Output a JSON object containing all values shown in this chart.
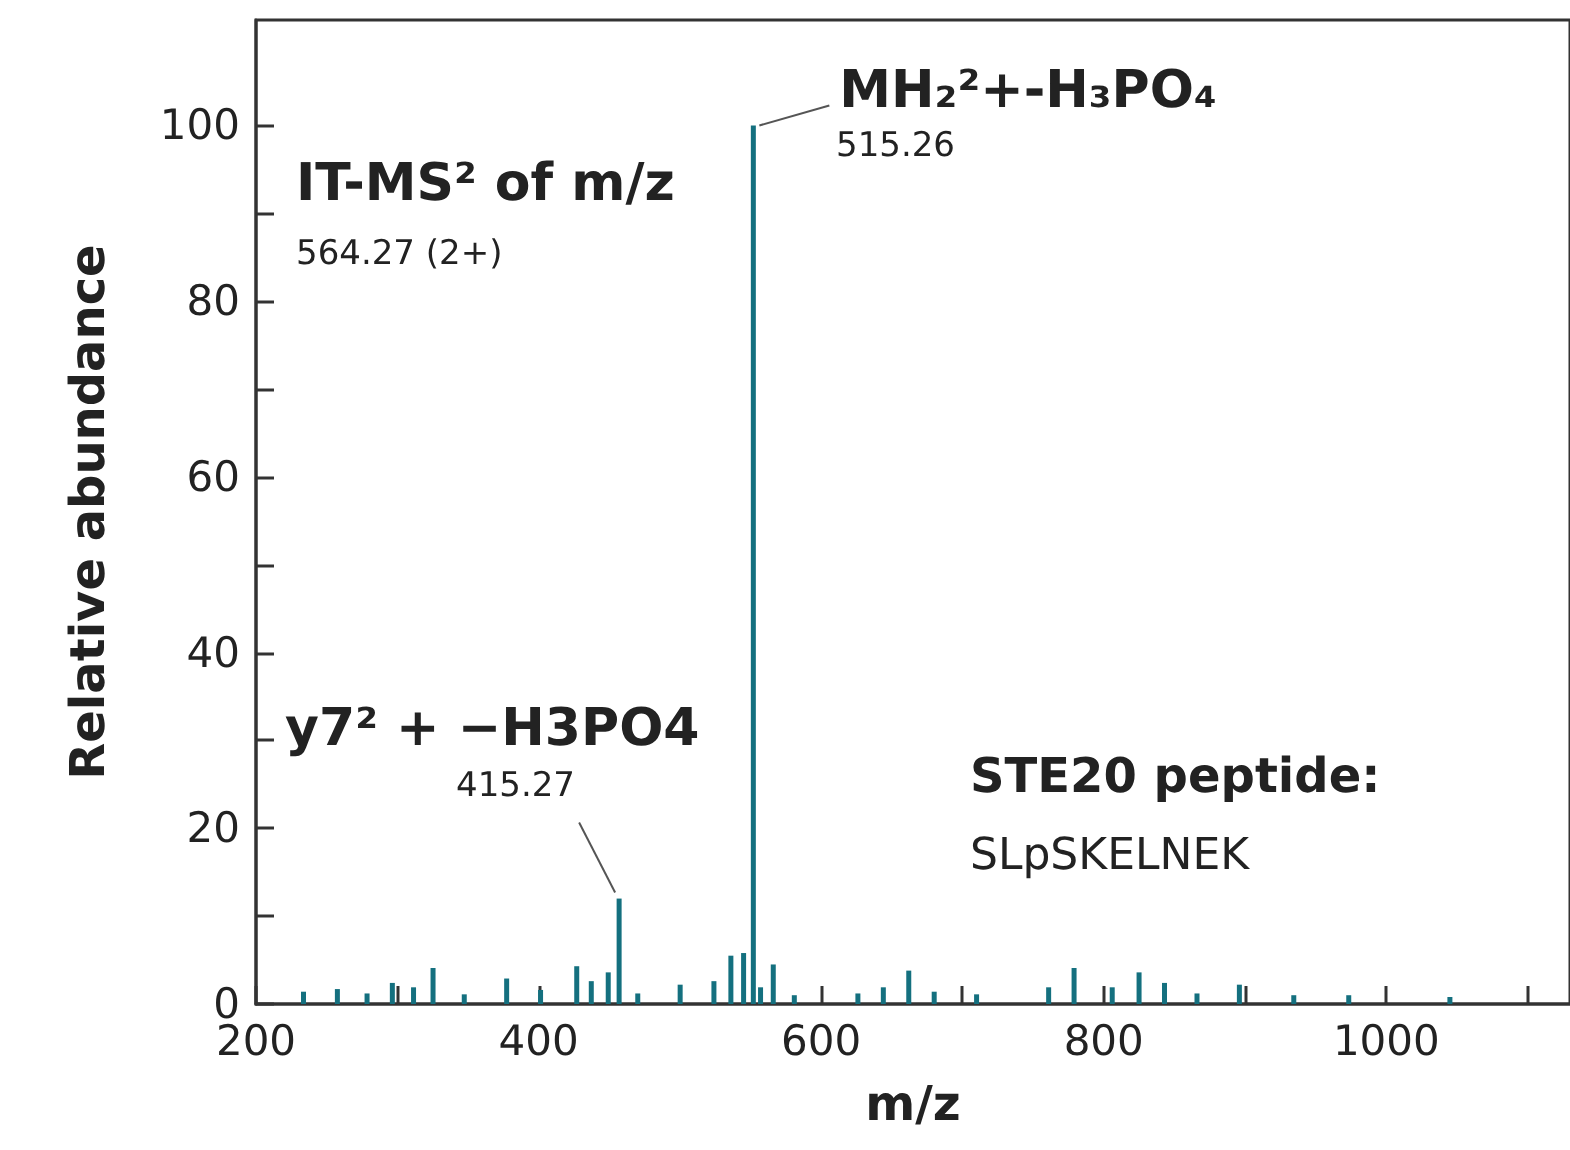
{
  "chart_data": {
    "type": "bar",
    "xlabel": "m/z",
    "ylabel": "Relative abundance",
    "xlim": [
      200,
      1130
    ],
    "ylim": [
      0,
      112
    ],
    "xticks": [
      200,
      {
        "value": 300,
        "label": null
      },
      400,
      {
        "value": 500,
        "label": null
      },
      600,
      {
        "value": 700,
        "label": null
      },
      800,
      {
        "value": 900,
        "label": null
      },
      1000,
      {
        "value": 1100,
        "label": null
      }
    ],
    "yticks": [
      0,
      {
        "value": 10,
        "label": null
      },
      20,
      {
        "value": 30,
        "label": null
      },
      40,
      {
        "value": 50,
        "label": null
      },
      60,
      {
        "value": 70,
        "label": null
      },
      80,
      {
        "value": 90,
        "label": null
      },
      100
    ],
    "grid": false,
    "series": [
      {
        "color": "#14707f",
        "x": [
          233.6,
          257.6,
          278.6,
          296.5,
          311.5,
          325.3,
          347.4,
          377.4,
          401.4,
          427,
          437.3,
          449.3,
          457,
          470.2,
          500.2,
          524.1,
          536.1,
          545.1,
          552,
          557.1,
          566.1,
          581,
          626,
          644,
          662,
          680,
          710,
          761,
          779,
          806,
          825,
          843,
          866,
          896,
          934.5,
          973.4,
          1045
        ],
        "values": [
          1.4,
          1.7,
          1.2,
          2.4,
          1.9,
          4.1,
          1.1,
          2.9,
          1.6,
          4.3,
          2.6,
          3.6,
          12,
          1.2,
          2.2,
          2.6,
          5.5,
          5.8,
          100,
          1.9,
          4.5,
          1.0,
          1.2,
          1.9,
          3.8,
          1.4,
          1.1,
          1.9,
          4.1,
          1.9,
          3.6,
          2.4,
          1.2,
          2.2,
          1.0,
          1.0,
          0.8
        ]
      }
    ],
    "annotations": [
      {
        "text": "MH₂²+-H₃PO₄",
        "x": 552,
        "y": 100
      },
      "515.26",
      "IT-MS² of m/z",
      "564.27 (2+)",
      {
        "text": "y7² + −H3PO4",
        "x": 457,
        "y": 12
      },
      "415.27",
      "STE20 peptide:",
      "SLpSKELNEK"
    ]
  }
}
